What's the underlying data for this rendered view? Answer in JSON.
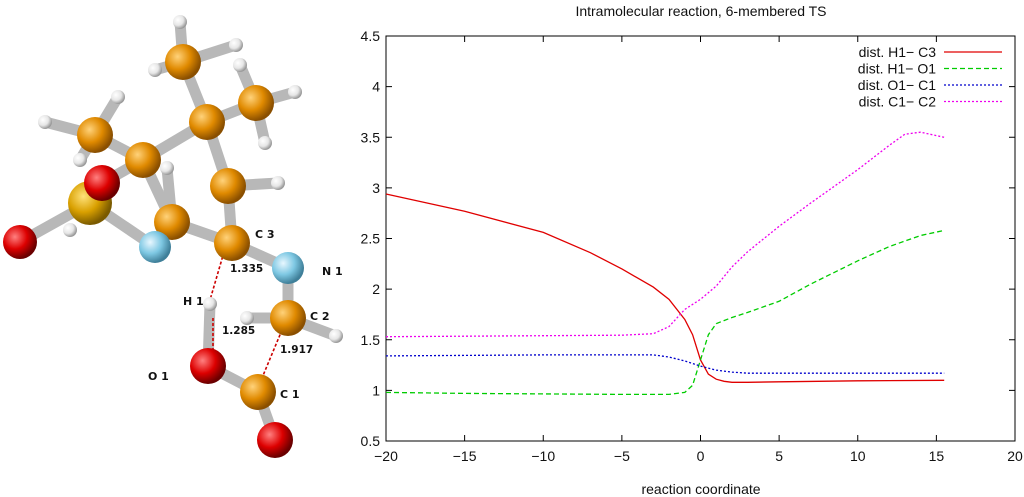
{
  "molecule": {
    "atom_labels": [
      "C 3",
      "N 1",
      "H 1",
      "C 2",
      "O 1",
      "C 1"
    ],
    "distances": [
      "1.335",
      "1.285",
      "1.917"
    ],
    "colors": {
      "carbon": "#e08a00",
      "hydrogen": "#f2f2f2",
      "oxygen": "#dd0000",
      "nitrogen": "#7ec8e3",
      "sulfur": "#d9a000",
      "bond": "#bdbdbd",
      "ts_bond": "#cc0000"
    }
  },
  "chart_data": {
    "type": "line",
    "title": "Intramolecular reaction, 6-membered TS",
    "xlabel": "reaction coordinate",
    "ylabel": "",
    "xlim": [
      -20,
      20
    ],
    "ylim": [
      0.5,
      4.5
    ],
    "xticks": [
      "−20",
      "−15",
      "−10",
      "−5",
      "0",
      "5",
      "10",
      "15",
      "20"
    ],
    "yticks": [
      "0.5",
      "1",
      "1.5",
      "2",
      "2.5",
      "3",
      "3.5",
      "4",
      "4.5"
    ],
    "grid": false,
    "legend_position": "top-right",
    "series": [
      {
        "name": "dist. H1− C3",
        "color": "#e00000",
        "dash": "solid",
        "x": [
          -20,
          -15,
          -10,
          -7,
          -5,
          -3,
          -2,
          -1,
          -0.5,
          0,
          0.5,
          1,
          1.5,
          2,
          3,
          5,
          10,
          15.5
        ],
        "y": [
          2.94,
          2.77,
          2.56,
          2.36,
          2.2,
          2.02,
          1.9,
          1.7,
          1.55,
          1.3,
          1.16,
          1.11,
          1.09,
          1.08,
          1.08,
          1.085,
          1.095,
          1.1
        ]
      },
      {
        "name": "dist. H1− O1",
        "color": "#00cc00",
        "dash": "dashed",
        "x": [
          -20,
          -15,
          -10,
          -5,
          -2,
          -1,
          -0.5,
          0,
          0.5,
          1,
          2,
          3,
          5,
          7,
          10,
          12,
          14,
          15.5
        ],
        "y": [
          0.98,
          0.97,
          0.965,
          0.96,
          0.96,
          0.98,
          1.05,
          1.3,
          1.55,
          1.66,
          1.72,
          1.77,
          1.88,
          2.05,
          2.28,
          2.42,
          2.53,
          2.58
        ]
      },
      {
        "name": "dist. O1− C1",
        "color": "#0000cc",
        "dash": "dotted",
        "x": [
          -20,
          -15,
          -10,
          -5,
          -3,
          -2,
          -1,
          0,
          1,
          2,
          3,
          5,
          10,
          15.5
        ],
        "y": [
          1.34,
          1.345,
          1.35,
          1.35,
          1.35,
          1.33,
          1.29,
          1.24,
          1.2,
          1.18,
          1.17,
          1.17,
          1.17,
          1.17
        ]
      },
      {
        "name": "dist. C1− C2",
        "color": "#ee00ee",
        "dash": "dotted",
        "x": [
          -20,
          -15,
          -10,
          -5,
          -3,
          -2,
          -1,
          0,
          1,
          2,
          3,
          5,
          7,
          10,
          12,
          13,
          14,
          15.5
        ],
        "y": [
          1.53,
          1.535,
          1.54,
          1.545,
          1.56,
          1.63,
          1.8,
          1.9,
          2.03,
          2.22,
          2.37,
          2.62,
          2.85,
          3.18,
          3.42,
          3.53,
          3.55,
          3.5
        ]
      }
    ]
  }
}
